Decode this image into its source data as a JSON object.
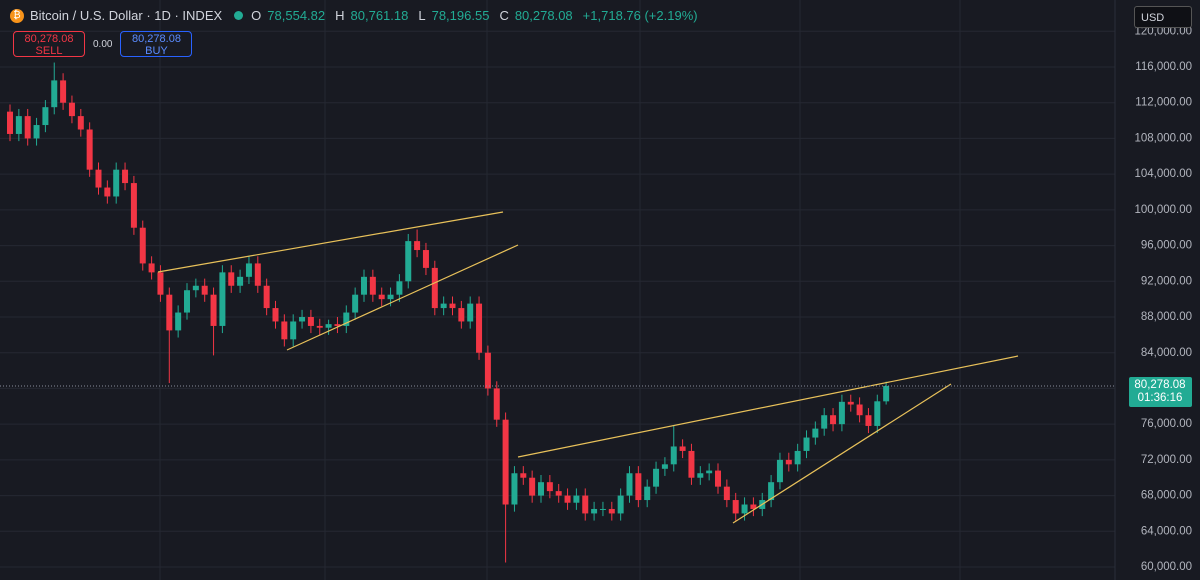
{
  "header": {
    "symbol": "Bitcoin / U.S. Dollar · 1D · INDEX",
    "ohlc": [
      {
        "label": "O",
        "value": "78,554.82"
      },
      {
        "label": "H",
        "value": "80,761.18"
      },
      {
        "label": "L",
        "value": "78,196.55"
      },
      {
        "label": "C",
        "value": "80,278.08"
      }
    ],
    "change": "+1,718.76 (+2.19%)"
  },
  "trade": {
    "sell_price": "80,278.08",
    "sell_label": "SELL",
    "spread": "0.00",
    "buy_price": "80,278.08",
    "buy_label": "BUY"
  },
  "currency": "USD",
  "chart_data": {
    "type": "candlestick",
    "open": [
      111000,
      108500,
      110500,
      108000,
      109500,
      111500,
      114500,
      112000,
      110500,
      109000,
      104500,
      102500,
      101500,
      104500,
      103000,
      98000,
      94000,
      93000,
      90500,
      86500,
      88500,
      91000,
      91500,
      90500,
      87000,
      93000,
      91500,
      92500,
      94000,
      91500,
      89000,
      87500,
      85500,
      87500,
      88000,
      87000,
      86800,
      87200,
      87000,
      88500,
      90500,
      92500,
      90500,
      90000,
      90500,
      92000,
      96500,
      95500,
      93500,
      89000,
      89500,
      89000,
      87500,
      89500,
      84000,
      80000,
      76500,
      67000,
      70500,
      70000,
      68000,
      69500,
      68500,
      68000,
      67200,
      68000,
      66000,
      66500,
      66500,
      66000,
      68000,
      70500,
      67500,
      69000,
      71000,
      71500,
      73500,
      73000,
      70000,
      70500,
      70800,
      69000,
      67500,
      66000,
      67000,
      66500,
      67500,
      69500,
      72000,
      71500,
      73000,
      74500,
      75500,
      77000,
      76000,
      78500,
      78200,
      77000,
      75800,
      78554.82
    ],
    "high": [
      111800,
      111300,
      111300,
      110300,
      112300,
      116500,
      115300,
      112800,
      111300,
      109800,
      105300,
      103300,
      105300,
      105300,
      103800,
      98800,
      94800,
      93800,
      91300,
      89300,
      91800,
      92300,
      92300,
      91300,
      93800,
      93800,
      93300,
      94800,
      94800,
      92300,
      89800,
      88300,
      88300,
      88800,
      88800,
      87800,
      87700,
      88000,
      89300,
      91300,
      93300,
      93300,
      91300,
      91300,
      92800,
      97300,
      97800,
      96300,
      94300,
      90300,
      90300,
      89800,
      90300,
      90300,
      84800,
      80800,
      77300,
      71300,
      71300,
      70800,
      70300,
      70300,
      69300,
      68800,
      68800,
      68800,
      67300,
      67300,
      67300,
      68800,
      71300,
      71300,
      69800,
      71800,
      72300,
      75800,
      74300,
      73800,
      71300,
      71600,
      71600,
      69800,
      68300,
      67800,
      67800,
      68300,
      70300,
      72800,
      72800,
      73800,
      75300,
      76300,
      77800,
      77800,
      79300,
      79300,
      79000,
      77800,
      79300,
      80761.18
    ],
    "low": [
      107700,
      107700,
      107200,
      107200,
      108700,
      110700,
      111200,
      109700,
      108200,
      103700,
      101700,
      100700,
      100700,
      102200,
      97200,
      93200,
      92200,
      89700,
      80600,
      85700,
      87700,
      90200,
      89700,
      83700,
      86200,
      90700,
      90700,
      91700,
      90700,
      88200,
      86700,
      84700,
      84700,
      86700,
      86200,
      86000,
      86000,
      86200,
      86200,
      87700,
      89700,
      89700,
      89200,
      89200,
      89700,
      91200,
      94700,
      92700,
      88200,
      88200,
      88200,
      86700,
      86700,
      83200,
      79200,
      75700,
      60500,
      66200,
      69200,
      67200,
      67200,
      67700,
      67200,
      66400,
      66400,
      65200,
      65200,
      65700,
      65200,
      65200,
      67200,
      66700,
      66700,
      68200,
      70200,
      70700,
      72200,
      69200,
      69200,
      69700,
      68200,
      66700,
      65200,
      65200,
      65700,
      65700,
      66700,
      68700,
      70700,
      70700,
      72200,
      73700,
      74700,
      75200,
      75200,
      77400,
      76200,
      75000,
      75000,
      78196.55
    ],
    "close": [
      108500,
      110500,
      108000,
      109500,
      111500,
      114500,
      112000,
      110500,
      109000,
      104500,
      102500,
      101500,
      104500,
      103000,
      98000,
      94000,
      93000,
      90500,
      86500,
      88500,
      91000,
      91500,
      90500,
      87000,
      93000,
      91500,
      92500,
      94000,
      91500,
      89000,
      87500,
      85500,
      87500,
      88000,
      87000,
      86800,
      87200,
      87000,
      88500,
      90500,
      92500,
      90500,
      90000,
      90500,
      92000,
      96500,
      95500,
      93500,
      89000,
      89500,
      89000,
      87500,
      89500,
      84000,
      80000,
      76500,
      67000,
      70500,
      70000,
      68000,
      69500,
      68500,
      68000,
      67200,
      68000,
      66000,
      66500,
      66500,
      66000,
      68000,
      70500,
      67500,
      69000,
      71000,
      71500,
      73500,
      73000,
      70000,
      70500,
      70800,
      69000,
      67500,
      66000,
      67000,
      66500,
      67500,
      69500,
      72000,
      71500,
      73000,
      74500,
      75500,
      77000,
      76000,
      78500,
      78200,
      77000,
      75800,
      78559.32,
      80278.08
    ],
    "up_color": "#22ab94",
    "down_color": "#f23645",
    "ylim": [
      58545,
      123504
    ],
    "yticks": [
      {
        "value": 60000,
        "label": "60,000.00"
      },
      {
        "value": 64000,
        "label": "64,000.00"
      },
      {
        "value": 68000,
        "label": "68,000.00"
      },
      {
        "value": 72000,
        "label": "72,000.00"
      },
      {
        "value": 76000,
        "label": "76,000.00"
      },
      {
        "value": 80000,
        "label": "80,000.00"
      },
      {
        "value": 84000,
        "label": "84,000.00"
      },
      {
        "value": 88000,
        "label": "88,000.00"
      },
      {
        "value": 92000,
        "label": "92,000.00"
      },
      {
        "value": 96000,
        "label": "96,000.00"
      },
      {
        "value": 100000,
        "label": "100,000.00"
      },
      {
        "value": 104000,
        "label": "104,000.00"
      },
      {
        "value": 108000,
        "label": "108,000.00"
      },
      {
        "value": 112000,
        "label": "112,000.00"
      },
      {
        "value": 116000,
        "label": "116,000.00"
      },
      {
        "value": 120000,
        "label": "120,000.00"
      }
    ],
    "grid": true,
    "last_price": {
      "value": 80278.08,
      "label": "80,278.08"
    },
    "countdown": "01:36:16"
  }
}
